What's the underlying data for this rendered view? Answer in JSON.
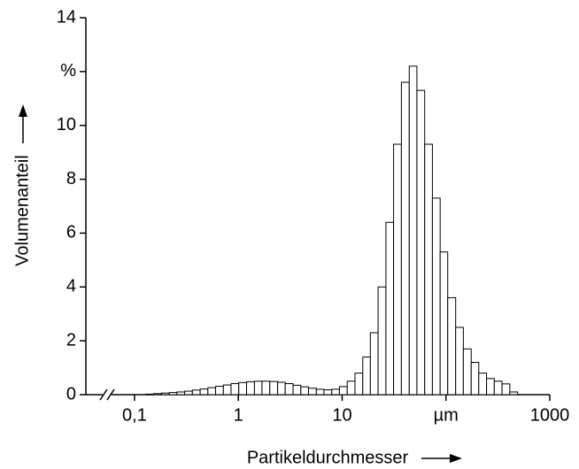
{
  "chart_data": {
    "type": "histogram",
    "x_label": "Partikeldurchmesser",
    "y_label": "Volumenanteil",
    "xscale": "log",
    "bins": [
      0.129,
      0.153,
      0.182,
      0.216,
      0.256,
      0.304,
      0.361,
      0.429,
      0.509,
      0.604,
      0.718,
      0.851,
      1.01,
      1.2,
      1.43,
      1.69,
      2.01,
      2.39,
      2.83,
      3.37,
      4.0,
      4.74,
      5.64,
      6.68,
      7.94,
      9.42,
      11.2,
      13.3,
      15.8,
      18.7,
      22.2,
      26.4,
      31.3,
      37.2,
      44.3,
      52.5,
      62.4,
      74.0,
      87.9,
      104,
      124,
      147,
      175,
      207,
      246,
      292,
      347,
      412,
      490
    ],
    "counts": [
      0.02,
      0.04,
      0.06,
      0.08,
      0.1,
      0.13,
      0.17,
      0.21,
      0.26,
      0.31,
      0.36,
      0.41,
      0.45,
      0.48,
      0.5,
      0.5,
      0.49,
      0.46,
      0.41,
      0.35,
      0.29,
      0.24,
      0.2,
      0.18,
      0.2,
      0.3,
      0.5,
      0.8,
      1.4,
      2.3,
      4.0,
      6.4,
      9.3,
      11.6,
      12.2,
      11.3,
      9.3,
      7.3,
      5.3,
      3.6,
      2.5,
      1.7,
      1.2,
      0.8,
      0.6,
      0.5,
      0.4,
      0.1
    ],
    "color": "#ffffff",
    "edgecolor": "#000000",
    "xlim": [
      0.034,
      1000
    ],
    "xticks": [
      {
        "value": 0.1,
        "label": "0,1"
      },
      1,
      10,
      {
        "value": 100,
        "label": "µm"
      },
      1000
    ],
    "ylim": [
      0,
      14
    ],
    "yticks": [
      0,
      2,
      4,
      6,
      8,
      10,
      {
        "value": 12,
        "label": "%"
      },
      14
    ]
  }
}
